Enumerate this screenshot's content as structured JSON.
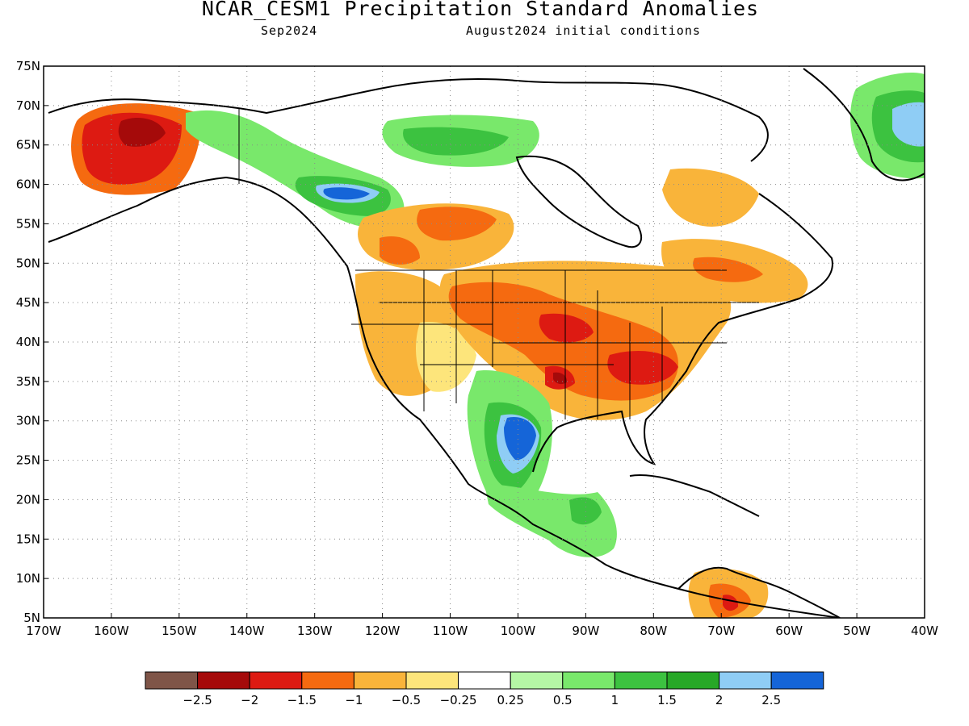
{
  "title": "NCAR_CESM1 Precipitation Standard Anomalies",
  "valid_month": "Sep2024",
  "init_conditions": "August2024 initial conditions",
  "map": {
    "lon_labels": [
      "170W",
      "160W",
      "150W",
      "140W",
      "130W",
      "120W",
      "110W",
      "100W",
      "90W",
      "80W",
      "70W",
      "60W",
      "50W",
      "40W"
    ],
    "lat_labels": [
      "75N",
      "70N",
      "65N",
      "60N",
      "55N",
      "50N",
      "45N",
      "40N",
      "35N",
      "30N",
      "25N",
      "20N",
      "15N",
      "10N",
      "5N"
    ],
    "lon_range": [
      -170,
      -40
    ],
    "lat_range": [
      5,
      75
    ],
    "grid": "dotted",
    "land_color": "#ffffff"
  },
  "legend": {
    "labels": [
      "−2.5",
      "−2",
      "−1.5",
      "−1",
      "−0.5",
      "−0.25",
      "0.25",
      "0.5",
      "1",
      "1.5",
      "2",
      "2.5"
    ],
    "colors": [
      "#7f5548",
      "#a50a0a",
      "#dd1a12",
      "#f56a10",
      "#f9b43a",
      "#fde57b",
      "#ffffff",
      "#b5f7a5",
      "#79e86b",
      "#3cc240",
      "#27a827",
      "#8fcdf5",
      "#1565d8"
    ]
  }
}
